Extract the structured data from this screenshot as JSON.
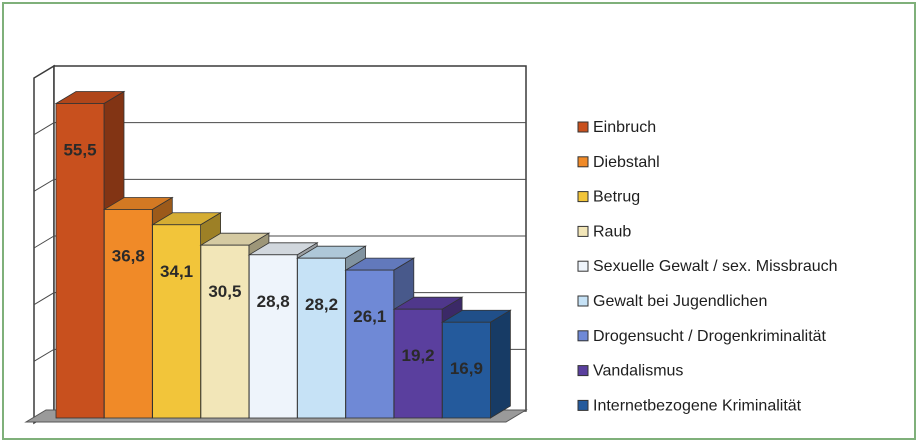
{
  "chart_data": {
    "type": "bar",
    "title": "",
    "xlabel": "",
    "ylabel": "",
    "categories": [
      "Einbruch",
      "Diebstahl",
      "Betrug",
      "Raub",
      "Sexuelle Gewalt / sex. Missbrauch",
      "Gewalt bei Jugendlichen",
      "Drogensucht / Drogenkriminalität",
      "Vandalismus",
      "Internetbezogene Kriminalität"
    ],
    "values": [
      55.5,
      36.8,
      34.1,
      30.5,
      28.8,
      28.2,
      26.1,
      19.2,
      16.9
    ],
    "value_labels": [
      "55,5",
      "36,8",
      "34,1",
      "30,5",
      "28,8",
      "28,2",
      "26,1",
      "19,2",
      "16,9"
    ],
    "colors": [
      "#c8501e",
      "#f08a28",
      "#f2c53a",
      "#f2e6b8",
      "#eef4fb",
      "#c6e2f6",
      "#6f89d6",
      "#5a3f9e",
      "#245a9c"
    ],
    "ylim": [
      0,
      60
    ],
    "grid": true,
    "legend": "right",
    "style": "3d"
  }
}
